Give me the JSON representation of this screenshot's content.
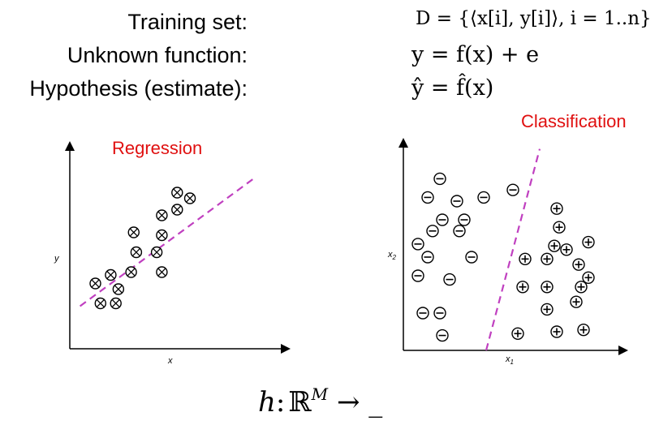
{
  "header": {
    "training_label": "Training set:",
    "unknown_label": "Unknown function:",
    "hypothesis_label": "Hypothesis (estimate):",
    "training_formula": "D = {⟨x[i], y[i]⟩, i = 1..n}",
    "unknown_formula": "y = f(x) + e",
    "hypothesis_formula": "ŷ = f̂(x)"
  },
  "regression": {
    "title": "Regression",
    "xlabel": "x",
    "ylabel": "y",
    "points": [
      [
        1.0,
        2.3
      ],
      [
        1.2,
        1.6
      ],
      [
        1.8,
        1.6
      ],
      [
        1.9,
        2.1
      ],
      [
        1.6,
        2.6
      ],
      [
        2.4,
        2.7
      ],
      [
        2.6,
        3.4
      ],
      [
        3.6,
        2.7
      ],
      [
        3.4,
        3.4
      ],
      [
        3.6,
        4.0
      ],
      [
        2.5,
        4.1
      ],
      [
        3.6,
        4.7
      ],
      [
        4.7,
        5.3
      ],
      [
        4.2,
        4.9
      ],
      [
        4.2,
        5.5
      ]
    ],
    "fit_line": [
      [
        0.4,
        1.5
      ],
      [
        7.2,
        6.0
      ]
    ],
    "marker": "circle-times",
    "line_color": "#c040c0"
  },
  "classification": {
    "title": "Classification",
    "xlabel": "x1",
    "ylabel": "x2",
    "negatives": [
      [
        1.5,
        9.2
      ],
      [
        1.0,
        8.2
      ],
      [
        2.2,
        8.0
      ],
      [
        1.6,
        7.0
      ],
      [
        2.5,
        7.0
      ],
      [
        1.2,
        6.4
      ],
      [
        2.3,
        6.4
      ],
      [
        0.6,
        5.7
      ],
      [
        1.0,
        5.0
      ],
      [
        2.8,
        5.0
      ],
      [
        0.6,
        4.0
      ],
      [
        1.9,
        3.8
      ],
      [
        0.8,
        2.0
      ],
      [
        1.5,
        2.0
      ],
      [
        1.6,
        0.8
      ]
    ],
    "negatives_extra": [
      [
        3.3,
        8.2
      ],
      [
        4.5,
        8.6
      ]
    ],
    "positives": [
      [
        6.3,
        7.6
      ],
      [
        6.4,
        6.6
      ],
      [
        6.2,
        5.6
      ],
      [
        6.7,
        5.4
      ],
      [
        7.6,
        5.8
      ],
      [
        5.0,
        4.9
      ],
      [
        5.9,
        4.9
      ],
      [
        7.2,
        4.6
      ],
      [
        4.9,
        3.4
      ],
      [
        5.9,
        3.4
      ],
      [
        7.3,
        3.4
      ],
      [
        7.6,
        3.9
      ],
      [
        5.9,
        2.2
      ],
      [
        7.1,
        2.6
      ],
      [
        4.7,
        0.9
      ],
      [
        6.3,
        1.0
      ],
      [
        7.4,
        1.1
      ]
    ],
    "boundary": [
      [
        3.4,
        0.0
      ],
      [
        5.6,
        10.8
      ]
    ],
    "line_color": "#c040c0"
  },
  "bottom_formula": {
    "h": "h",
    "colon": ":",
    "domain": "ℝ",
    "sup": "M",
    "arrow": "→",
    "blank": "_"
  }
}
